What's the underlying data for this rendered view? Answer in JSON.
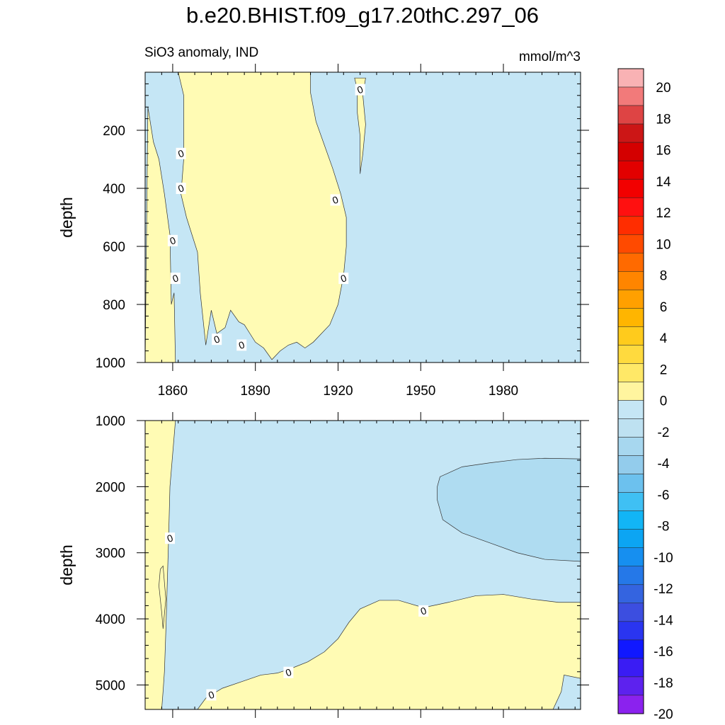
{
  "title": "b.e20.BHIST.f09_g17.20thC.297_06",
  "left_subtitle": "SiO3 anomaly, IND",
  "right_subtitle": "mmol/m^3",
  "chart_data": [
    {
      "type": "heatmap",
      "panel": "upper",
      "ylabel": "depth",
      "xlim": [
        1850,
        2008
      ],
      "ylim": [
        1000,
        0
      ],
      "x_ticks": [
        1860,
        1890,
        1920,
        1950,
        1980
      ],
      "y_ticks": [
        200,
        400,
        600,
        800,
        1000
      ],
      "y_tick_labels": [
        "200",
        "400",
        "600",
        "800",
        "1000"
      ],
      "contour_labels": [
        {
          "text": "0",
          "x": 1928,
          "y": 60
        },
        {
          "text": "0",
          "x": 1863,
          "y": 280
        },
        {
          "text": "0",
          "x": 1863,
          "y": 400
        },
        {
          "text": "0",
          "x": 1860,
          "y": 580
        },
        {
          "text": "0",
          "x": 1861,
          "y": 710
        },
        {
          "text": "0",
          "x": 1919,
          "y": 440
        },
        {
          "text": "0",
          "x": 1922,
          "y": 710
        },
        {
          "text": "0",
          "x": 1876,
          "y": 920
        },
        {
          "text": "0",
          "x": 1885,
          "y": 940
        }
      ],
      "regions": [
        {
          "value_bin": "0 to 1",
          "points": [
            [
              1850,
              1000
            ],
            [
              1851,
              120
            ],
            [
              1853,
              240
            ],
            [
              1855,
              300
            ],
            [
              1857,
              420
            ],
            [
              1859,
              560
            ],
            [
              1859.5,
              800
            ],
            [
              1860.5,
              760
            ],
            [
              1861,
              1000
            ]
          ]
        },
        {
          "value_bin": "0 to 1",
          "points": [
            [
              1862,
              0
            ],
            [
              1864,
              80
            ],
            [
              1864,
              300
            ],
            [
              1863,
              420
            ],
            [
              1865,
              500
            ],
            [
              1867,
              560
            ],
            [
              1869,
              620
            ],
            [
              1870,
              760
            ],
            [
              1872,
              940
            ],
            [
              1874,
              820
            ],
            [
              1876,
              900
            ],
            [
              1879,
              880
            ],
            [
              1881,
              820
            ],
            [
              1884,
              860
            ],
            [
              1886,
              870
            ],
            [
              1888,
              900
            ],
            [
              1890,
              930
            ],
            [
              1893,
              950
            ],
            [
              1896,
              990
            ],
            [
              1899,
              960
            ],
            [
              1902,
              940
            ],
            [
              1905,
              930
            ],
            [
              1908,
              950
            ],
            [
              1911,
              930
            ],
            [
              1914,
              900
            ],
            [
              1917,
              870
            ],
            [
              1920,
              800
            ],
            [
              1922,
              700
            ],
            [
              1923,
              600
            ],
            [
              1923,
              500
            ],
            [
              1921,
              420
            ],
            [
              1918,
              330
            ],
            [
              1915,
              250
            ],
            [
              1912,
              170
            ],
            [
              1910,
              70
            ],
            [
              1910,
              0
            ]
          ]
        },
        {
          "value_bin": "0 to 1",
          "points": [
            [
              1926,
              20
            ],
            [
              1927,
              60
            ],
            [
              1927,
              140
            ],
            [
              1928,
              220
            ],
            [
              1928,
              350
            ],
            [
              1929,
              280
            ],
            [
              1930,
              180
            ],
            [
              1929,
              80
            ],
            [
              1930,
              20
            ]
          ]
        }
      ],
      "background_bin": "-1 to 0",
      "grid": false
    },
    {
      "type": "heatmap",
      "panel": "lower",
      "ylabel": "depth",
      "xlim": [
        1850,
        2008
      ],
      "ylim": [
        5370,
        1000
      ],
      "x_ticks": [
        1860,
        1890,
        1920,
        1950,
        1980
      ],
      "y_ticks": [
        1000,
        2000,
        3000,
        4000,
        5000
      ],
      "y_tick_labels": [
        "1000",
        "2000",
        "3000",
        "4000",
        "5000"
      ],
      "contour_labels": [
        {
          "text": "0",
          "x": 1859,
          "y": 2780
        },
        {
          "text": "0",
          "x": 1951,
          "y": 3880
        },
        {
          "text": "0",
          "x": 1902,
          "y": 4810
        },
        {
          "text": "0",
          "x": 1874,
          "y": 5150
        }
      ],
      "regions": [
        {
          "value_bin": "0 to 1",
          "points": [
            [
              1850,
              1000
            ],
            [
              1861,
              1000
            ],
            [
              1860,
              1500
            ],
            [
              1859,
              2000
            ],
            [
              1858.5,
              2800
            ],
            [
              1858,
              3500
            ],
            [
              1857.5,
              4200
            ],
            [
              1857,
              4800
            ],
            [
              1856.5,
              5100
            ],
            [
              1856,
              5370
            ],
            [
              1850,
              5370
            ]
          ]
        },
        {
          "value_bin": "0 to 1",
          "points": [
            [
              1869,
              5370
            ],
            [
              1872,
              5200
            ],
            [
              1878,
              5050
            ],
            [
              1885,
              4950
            ],
            [
              1892,
              4850
            ],
            [
              1898,
              4820
            ],
            [
              1903,
              4750
            ],
            [
              1909,
              4650
            ],
            [
              1915,
              4500
            ],
            [
              1920,
              4300
            ],
            [
              1924,
              4050
            ],
            [
              1928,
              3850
            ],
            [
              1935,
              3720
            ],
            [
              1942,
              3720
            ],
            [
              1951,
              3830
            ],
            [
              1960,
              3750
            ],
            [
              1970,
              3650
            ],
            [
              1980,
              3630
            ],
            [
              1990,
              3700
            ],
            [
              2000,
              3750
            ],
            [
              2008,
              3750
            ],
            [
              2008,
              4900
            ],
            [
              2002,
              4850
            ],
            [
              2001,
              5100
            ],
            [
              1998,
              5370
            ]
          ]
        },
        {
          "value_bin": "0 to 1",
          "points": [
            [
              1855,
              3500
            ],
            [
              1856,
              3900
            ],
            [
              1856.5,
              4150
            ],
            [
              1857.5,
              3700
            ],
            [
              1856.5,
              3200
            ],
            [
              1855.5,
              3250
            ]
          ]
        }
      ],
      "regions_dark": [
        {
          "value_bin": "-2 to -1",
          "points": [
            [
              2008,
              1580
            ],
            [
              1995,
              1570
            ],
            [
              1985,
              1590
            ],
            [
              1975,
              1640
            ],
            [
              1965,
              1700
            ],
            [
              1957,
              1850
            ],
            [
              1956,
              2000
            ],
            [
              1956,
              2200
            ],
            [
              1958,
              2500
            ],
            [
              1965,
              2700
            ],
            [
              1975,
              2850
            ],
            [
              1985,
              3000
            ],
            [
              1995,
              3100
            ],
            [
              2008,
              3130
            ]
          ]
        }
      ],
      "background_bin": "-1 to 0",
      "grid": false
    }
  ],
  "colorbar": {
    "labels": [
      "20",
      "18",
      "16",
      "14",
      "12",
      "10",
      "8",
      "6",
      "4",
      "2",
      "0",
      "-2",
      "-4",
      "-6",
      "-8",
      "-10",
      "-12",
      "-14",
      "-16",
      "-18",
      "-20"
    ],
    "colors": [
      "#f9b2b4",
      "#f27a7a",
      "#de4444",
      "#cc1616",
      "#d40000",
      "#e20000",
      "#f20000",
      "#ff1010",
      "#ff2d00",
      "#ff4a00",
      "#ff6a00",
      "#ff8500",
      "#ffa000",
      "#ffb500",
      "#ffcb1c",
      "#ffda3e",
      "#ffe867",
      "#fff59f",
      "#c5e6f5",
      "#bee1f1",
      "#a7d7ef",
      "#93ccec",
      "#6cc1ee",
      "#3fc0f4",
      "#12b5f5",
      "#0ca5f3",
      "#168ff0",
      "#2578e8",
      "#3464e0",
      "#3c4ee0",
      "#2a35f0",
      "#1018ff",
      "#3a1cf4",
      "#5d22ee",
      "#8b22ee"
    ]
  }
}
